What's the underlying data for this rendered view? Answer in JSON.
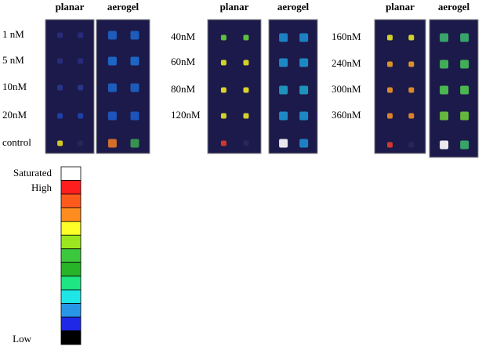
{
  "panels": [
    {
      "headers": [
        "planar",
        "aerogel"
      ],
      "rows": [
        "1 nM",
        "5 nM",
        "10nM",
        "20nM",
        "control"
      ]
    },
    {
      "headers": [
        "planar",
        "aerogel"
      ],
      "rows": [
        "40nM",
        "60nM",
        "80nM",
        "120nM"
      ]
    },
    {
      "headers": [
        "planar",
        "aerogel"
      ],
      "rows": [
        "160nM",
        "240nM",
        "300nM",
        "360nM"
      ]
    }
  ],
  "legend": {
    "top_labels": [
      "Saturated",
      "High"
    ],
    "bottom_label": "Low"
  }
}
